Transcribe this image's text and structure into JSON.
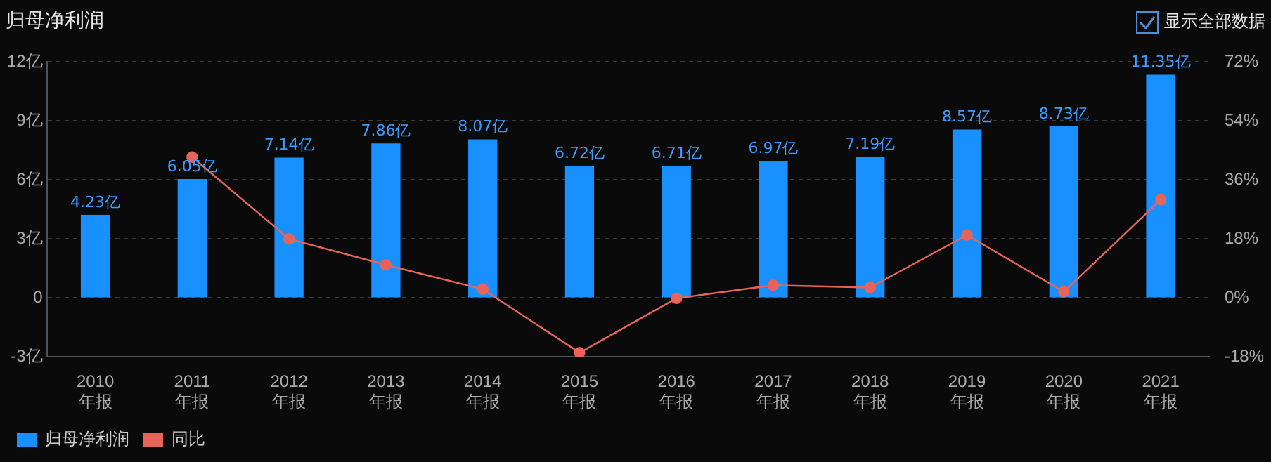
{
  "chart_data": {
    "type": "bar",
    "title": "归母净利润",
    "annotations": [
      "显示全部数据"
    ],
    "categories": [
      "2010\n年报",
      "2011\n年报",
      "2012\n年报",
      "2013\n年报",
      "2014\n年报",
      "2015\n年报",
      "2016\n年报",
      "2017\n年报",
      "2018\n年报",
      "2019\n年报",
      "2020\n年报",
      "2021\n年报"
    ],
    "series": [
      {
        "name": "归母净利润",
        "color": "#1890ff",
        "values": [
          4.23,
          6.05,
          7.14,
          7.86,
          8.07,
          6.72,
          6.71,
          6.97,
          7.19,
          8.57,
          8.73,
          11.35
        ],
        "value_labels": [
          "4.23亿",
          "6.05亿",
          "7.14亿",
          "7.86亿",
          "8.07亿",
          "6.72亿",
          "6.71亿",
          "6.97亿",
          "7.19亿",
          "8.57亿",
          "8.73亿",
          "11.35亿"
        ]
      },
      {
        "name": "同比",
        "type": "line",
        "axis": "y2",
        "color": "#e8645a",
        "marker": "circle",
        "values": [
          null,
          43.0,
          18.0,
          10.1,
          2.7,
          -16.7,
          -0.1,
          3.9,
          3.2,
          19.2,
          1.9,
          30.0
        ]
      }
    ],
    "ylim": [
      -3,
      12
    ],
    "yticks": [
      {
        "value": -3,
        "label": "-3亿"
      },
      0,
      {
        "value": 3,
        "label": "3亿"
      },
      {
        "value": 6,
        "label": "6亿"
      },
      {
        "value": 9,
        "label": "9亿"
      },
      {
        "value": 12,
        "label": "12亿"
      }
    ],
    "y2lim": [
      -18,
      72
    ],
    "y2ticks": [
      {
        "value": -18,
        "label": "-18%"
      },
      {
        "value": 0,
        "label": "0%"
      },
      {
        "value": 18,
        "label": "18%"
      },
      {
        "value": 36,
        "label": "36%"
      },
      {
        "value": 54,
        "label": "54%"
      },
      {
        "value": 72,
        "label": "72%"
      }
    ],
    "grid": "y",
    "legend": "bottom left"
  }
}
